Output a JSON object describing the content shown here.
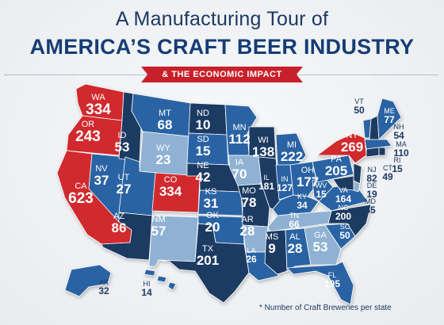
{
  "title_line1": "A Manufacturing Tour of",
  "title_line2": "AMERICA’S CRAFT BEER INDUSTRY",
  "ribbon": "& THE ECONOMIC IMPACT",
  "footnote": "* Number of Craft Breweries per state",
  "colors": {
    "dark_blue": "#1d3a62",
    "mid_blue": "#2a64a4",
    "light_blue": "#8fb1d3",
    "red": "#d0292f",
    "ribbon_red": "#c8202a"
  },
  "states": [
    {
      "abbr": "WA",
      "count": "334"
    },
    {
      "abbr": "OR",
      "count": "243"
    },
    {
      "abbr": "CA",
      "count": "623"
    },
    {
      "abbr": "NV",
      "count": "37"
    },
    {
      "abbr": "ID",
      "count": "53"
    },
    {
      "abbr": "MT",
      "count": "68"
    },
    {
      "abbr": "WY",
      "count": "23"
    },
    {
      "abbr": "UT",
      "count": "27"
    },
    {
      "abbr": "AZ",
      "count": "86"
    },
    {
      "abbr": "CO",
      "count": "334"
    },
    {
      "abbr": "NM",
      "count": "57"
    },
    {
      "abbr": "ND",
      "count": "10"
    },
    {
      "abbr": "SD",
      "count": "15"
    },
    {
      "abbr": "NE",
      "count": "42"
    },
    {
      "abbr": "KS",
      "count": "31"
    },
    {
      "abbr": "OK",
      "count": "20"
    },
    {
      "abbr": "TX",
      "count": "201"
    },
    {
      "abbr": "MN",
      "count": "112"
    },
    {
      "abbr": "IA",
      "count": "70"
    },
    {
      "abbr": "MO",
      "count": "78"
    },
    {
      "abbr": "AR",
      "count": "28"
    },
    {
      "abbr": "LA",
      "count": "26"
    },
    {
      "abbr": "WI",
      "count": "138"
    },
    {
      "abbr": "IL",
      "count": "181"
    },
    {
      "abbr": "MI",
      "count": "222"
    },
    {
      "abbr": "IN",
      "count": "127"
    },
    {
      "abbr": "OH",
      "count": "177"
    },
    {
      "abbr": "KY",
      "count": "34"
    },
    {
      "abbr": "TN",
      "count": "66"
    },
    {
      "abbr": "MS",
      "count": "9"
    },
    {
      "abbr": "AL",
      "count": "28"
    },
    {
      "abbr": "GA",
      "count": "53"
    },
    {
      "abbr": "FL",
      "count": "195"
    },
    {
      "abbr": "SC",
      "count": "50"
    },
    {
      "abbr": "NC",
      "count": "200"
    },
    {
      "abbr": "VA",
      "count": "164"
    },
    {
      "abbr": "WV",
      "count": "15"
    },
    {
      "abbr": "PA",
      "count": "205"
    },
    {
      "abbr": "NY",
      "count": "269"
    },
    {
      "abbr": "VT",
      "count": "50"
    },
    {
      "abbr": "ME",
      "count": "77"
    },
    {
      "abbr": "NH",
      "count": "54"
    },
    {
      "abbr": "MA",
      "count": "110"
    },
    {
      "abbr": "RI",
      "count": "15"
    },
    {
      "abbr": "CT",
      "count": "49"
    },
    {
      "abbr": "NJ",
      "count": "82"
    },
    {
      "abbr": "DE",
      "count": "19"
    },
    {
      "abbr": "MD",
      "count": "65"
    },
    {
      "abbr": "AK",
      "count": "32"
    },
    {
      "abbr": "HI",
      "count": "14"
    }
  ]
}
